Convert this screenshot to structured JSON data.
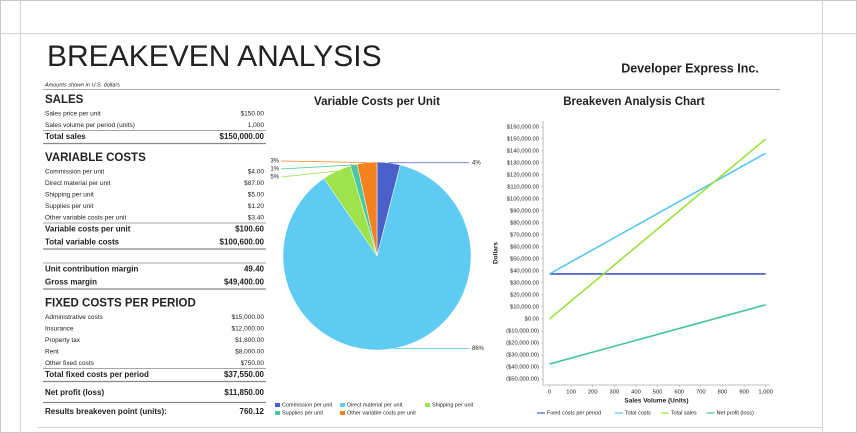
{
  "title": "BREAKEVEN ANALYSIS",
  "company": "Developer Express Inc.",
  "note": "Amounts shown in U.S. dollars",
  "sections": [
    {
      "heading": "SALES",
      "rows": [
        [
          "Sales price per unit",
          "$150.00"
        ],
        [
          "Sales volume per period (units)",
          "1,000"
        ]
      ],
      "totals": [
        [
          "Total sales",
          "$150,000.00"
        ]
      ]
    },
    {
      "heading": "VARIABLE COSTS",
      "rows": [
        [
          "Commission per unit",
          "$4.00"
        ],
        [
          "Direct material per unit",
          "$87.00"
        ],
        [
          "Shipping per unit",
          "$5.00"
        ],
        [
          "Supplies per unit",
          "$1.20"
        ],
        [
          "Other variable costs per unit",
          "$3.40"
        ]
      ],
      "totals": [
        [
          "Variable costs per unit",
          "$100.60"
        ],
        [
          "Total variable costs",
          "$100,600.00"
        ]
      ]
    },
    {
      "totals": [
        [
          "Unit contribution margin",
          "49.40"
        ],
        [
          "Gross margin",
          "$49,400.00"
        ]
      ]
    },
    {
      "heading": "FIXED COSTS PER PERIOD",
      "rows": [
        [
          "Administrative costs",
          "$15,000.00"
        ],
        [
          "Insurance",
          "$12,000.00"
        ],
        [
          "Property tax",
          "$1,800.00"
        ],
        [
          "Rent",
          "$8,000.00"
        ],
        [
          "Other fixed costs",
          "$750.00"
        ]
      ],
      "totals": [
        [
          "Total fixed costs per period",
          "$37,550.00"
        ]
      ]
    }
  ],
  "net_profit": [
    "Net profit (loss)",
    "$11,850.00"
  ],
  "breakeven": [
    "Results breakeven point (units):",
    "760.12"
  ],
  "pie_chart": {
    "type": "pie",
    "title": "Variable Costs per Unit",
    "categories": [
      "Commission per unit",
      "Direct material per unit",
      "Shipping per unit",
      "Supplies per unit",
      "Other variable costs per unit"
    ],
    "values": [
      3.98,
      86.48,
      4.97,
      1.19,
      3.38
    ],
    "value_labels": [
      "4%",
      "86%",
      "5%",
      "1%",
      "3%"
    ],
    "colors": [
      "#4a5fc8",
      "#5ecbf2",
      "#9fe34c",
      "#4ec8a0",
      "#f5821f"
    ]
  },
  "line_chart": {
    "type": "line",
    "title": "Breakeven Analysis Chart",
    "x_label": "Sales Volume (Units)",
    "y_label": "Dollars",
    "x": [
      0,
      1000
    ],
    "xlim": [
      -30,
      1020
    ],
    "xticks": [
      0,
      100,
      200,
      300,
      400,
      500,
      600,
      700,
      800,
      900,
      {
        "value": 1000,
        "label": "1,000"
      }
    ],
    "ylim": [
      -55000,
      165000
    ],
    "yticks": [
      {
        "value": -50000,
        "label": "($50,000.00)"
      },
      {
        "value": -40000,
        "label": "($40,000.00)"
      },
      {
        "value": -30000,
        "label": "($30,000.00)"
      },
      {
        "value": -20000,
        "label": "($20,000.00)"
      },
      {
        "value": -10000,
        "label": "($10,000.00)"
      },
      {
        "value": 0,
        "label": "$0.00"
      },
      {
        "value": 10000,
        "label": "$10,000.00"
      },
      {
        "value": 20000,
        "label": "$20,000.00"
      },
      {
        "value": 30000,
        "label": "$30,000.00"
      },
      {
        "value": 40000,
        "label": "$40,000.00"
      },
      {
        "value": 50000,
        "label": "$50,000.00"
      },
      {
        "value": 60000,
        "label": "$60,000.00"
      },
      {
        "value": 70000,
        "label": "$70,000.00"
      },
      {
        "value": 80000,
        "label": "$80,000.00"
      },
      {
        "value": 90000,
        "label": "$90,000.00"
      },
      {
        "value": 100000,
        "label": "$100,000.00"
      },
      {
        "value": 110000,
        "label": "$110,000.00"
      },
      {
        "value": 120000,
        "label": "$120,000.00"
      },
      {
        "value": 130000,
        "label": "$130,000.00"
      },
      {
        "value": 140000,
        "label": "$140,000.00"
      },
      {
        "value": 150000,
        "label": "$150,000.00"
      },
      {
        "value": 160000,
        "label": "$160,000.00"
      }
    ],
    "series": [
      {
        "name": "Fixed costs per period",
        "color": "#3f5cc6",
        "values": [
          37550,
          37550
        ]
      },
      {
        "name": "Total costs",
        "color": "#5ac6ee",
        "values": [
          37550,
          138150
        ]
      },
      {
        "name": "Total sales",
        "color": "#9ee23f",
        "values": [
          0,
          150000
        ]
      },
      {
        "name": "Net profit (loss)",
        "color": "#48c898",
        "values": [
          -37550,
          11850
        ]
      }
    ]
  }
}
